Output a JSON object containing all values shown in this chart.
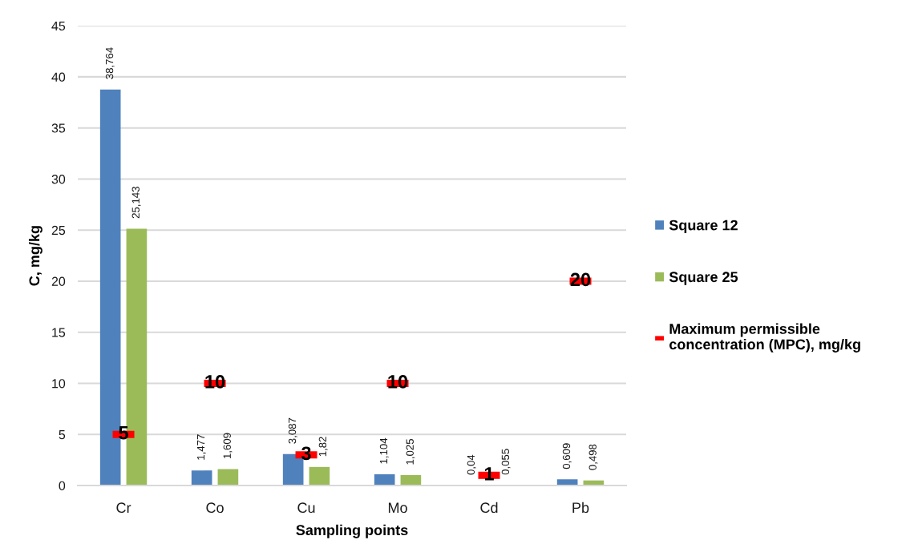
{
  "chart_data": {
    "type": "bar",
    "xlabel": "Sampling points",
    "ylabel": "C, mg/kg",
    "categories": [
      "Cr",
      "Co",
      "Cu",
      "Mo",
      "Cd",
      "Pb"
    ],
    "series": [
      {
        "name": "Square 12",
        "color": "#4f81bd",
        "values": [
          38.764,
          1.477,
          3.087,
          1.104,
          0.04,
          0.609
        ],
        "value_labels": [
          "38,764",
          "1,477",
          "3,087",
          "1,104",
          "0,04",
          "0,609"
        ]
      },
      {
        "name": "Square 25",
        "color": "#9bbb59",
        "values": [
          25.143,
          1.609,
          1.82,
          1.025,
          0.055,
          0.498
        ],
        "value_labels": [
          "25,143",
          "1,609",
          "1,82",
          "1,025",
          "0,055",
          "0,498"
        ]
      },
      {
        "name": "Maximum permissible\nconcentration (MPC), mg/kg",
        "type": "scatter",
        "color": "#ff0000",
        "x": [
          "Cr",
          "Co",
          "Cu",
          "Mo",
          "Cd",
          "Pb"
        ],
        "values": [
          5,
          10,
          3,
          10,
          1,
          20
        ],
        "value_labels": [
          "5",
          "10",
          "3",
          "10",
          "1",
          "20"
        ]
      }
    ],
    "ylim": [
      0,
      45
    ],
    "yticks": [
      0,
      5,
      10,
      15,
      20,
      25,
      30,
      35,
      40,
      45
    ],
    "grid": "y",
    "legend": "right"
  }
}
